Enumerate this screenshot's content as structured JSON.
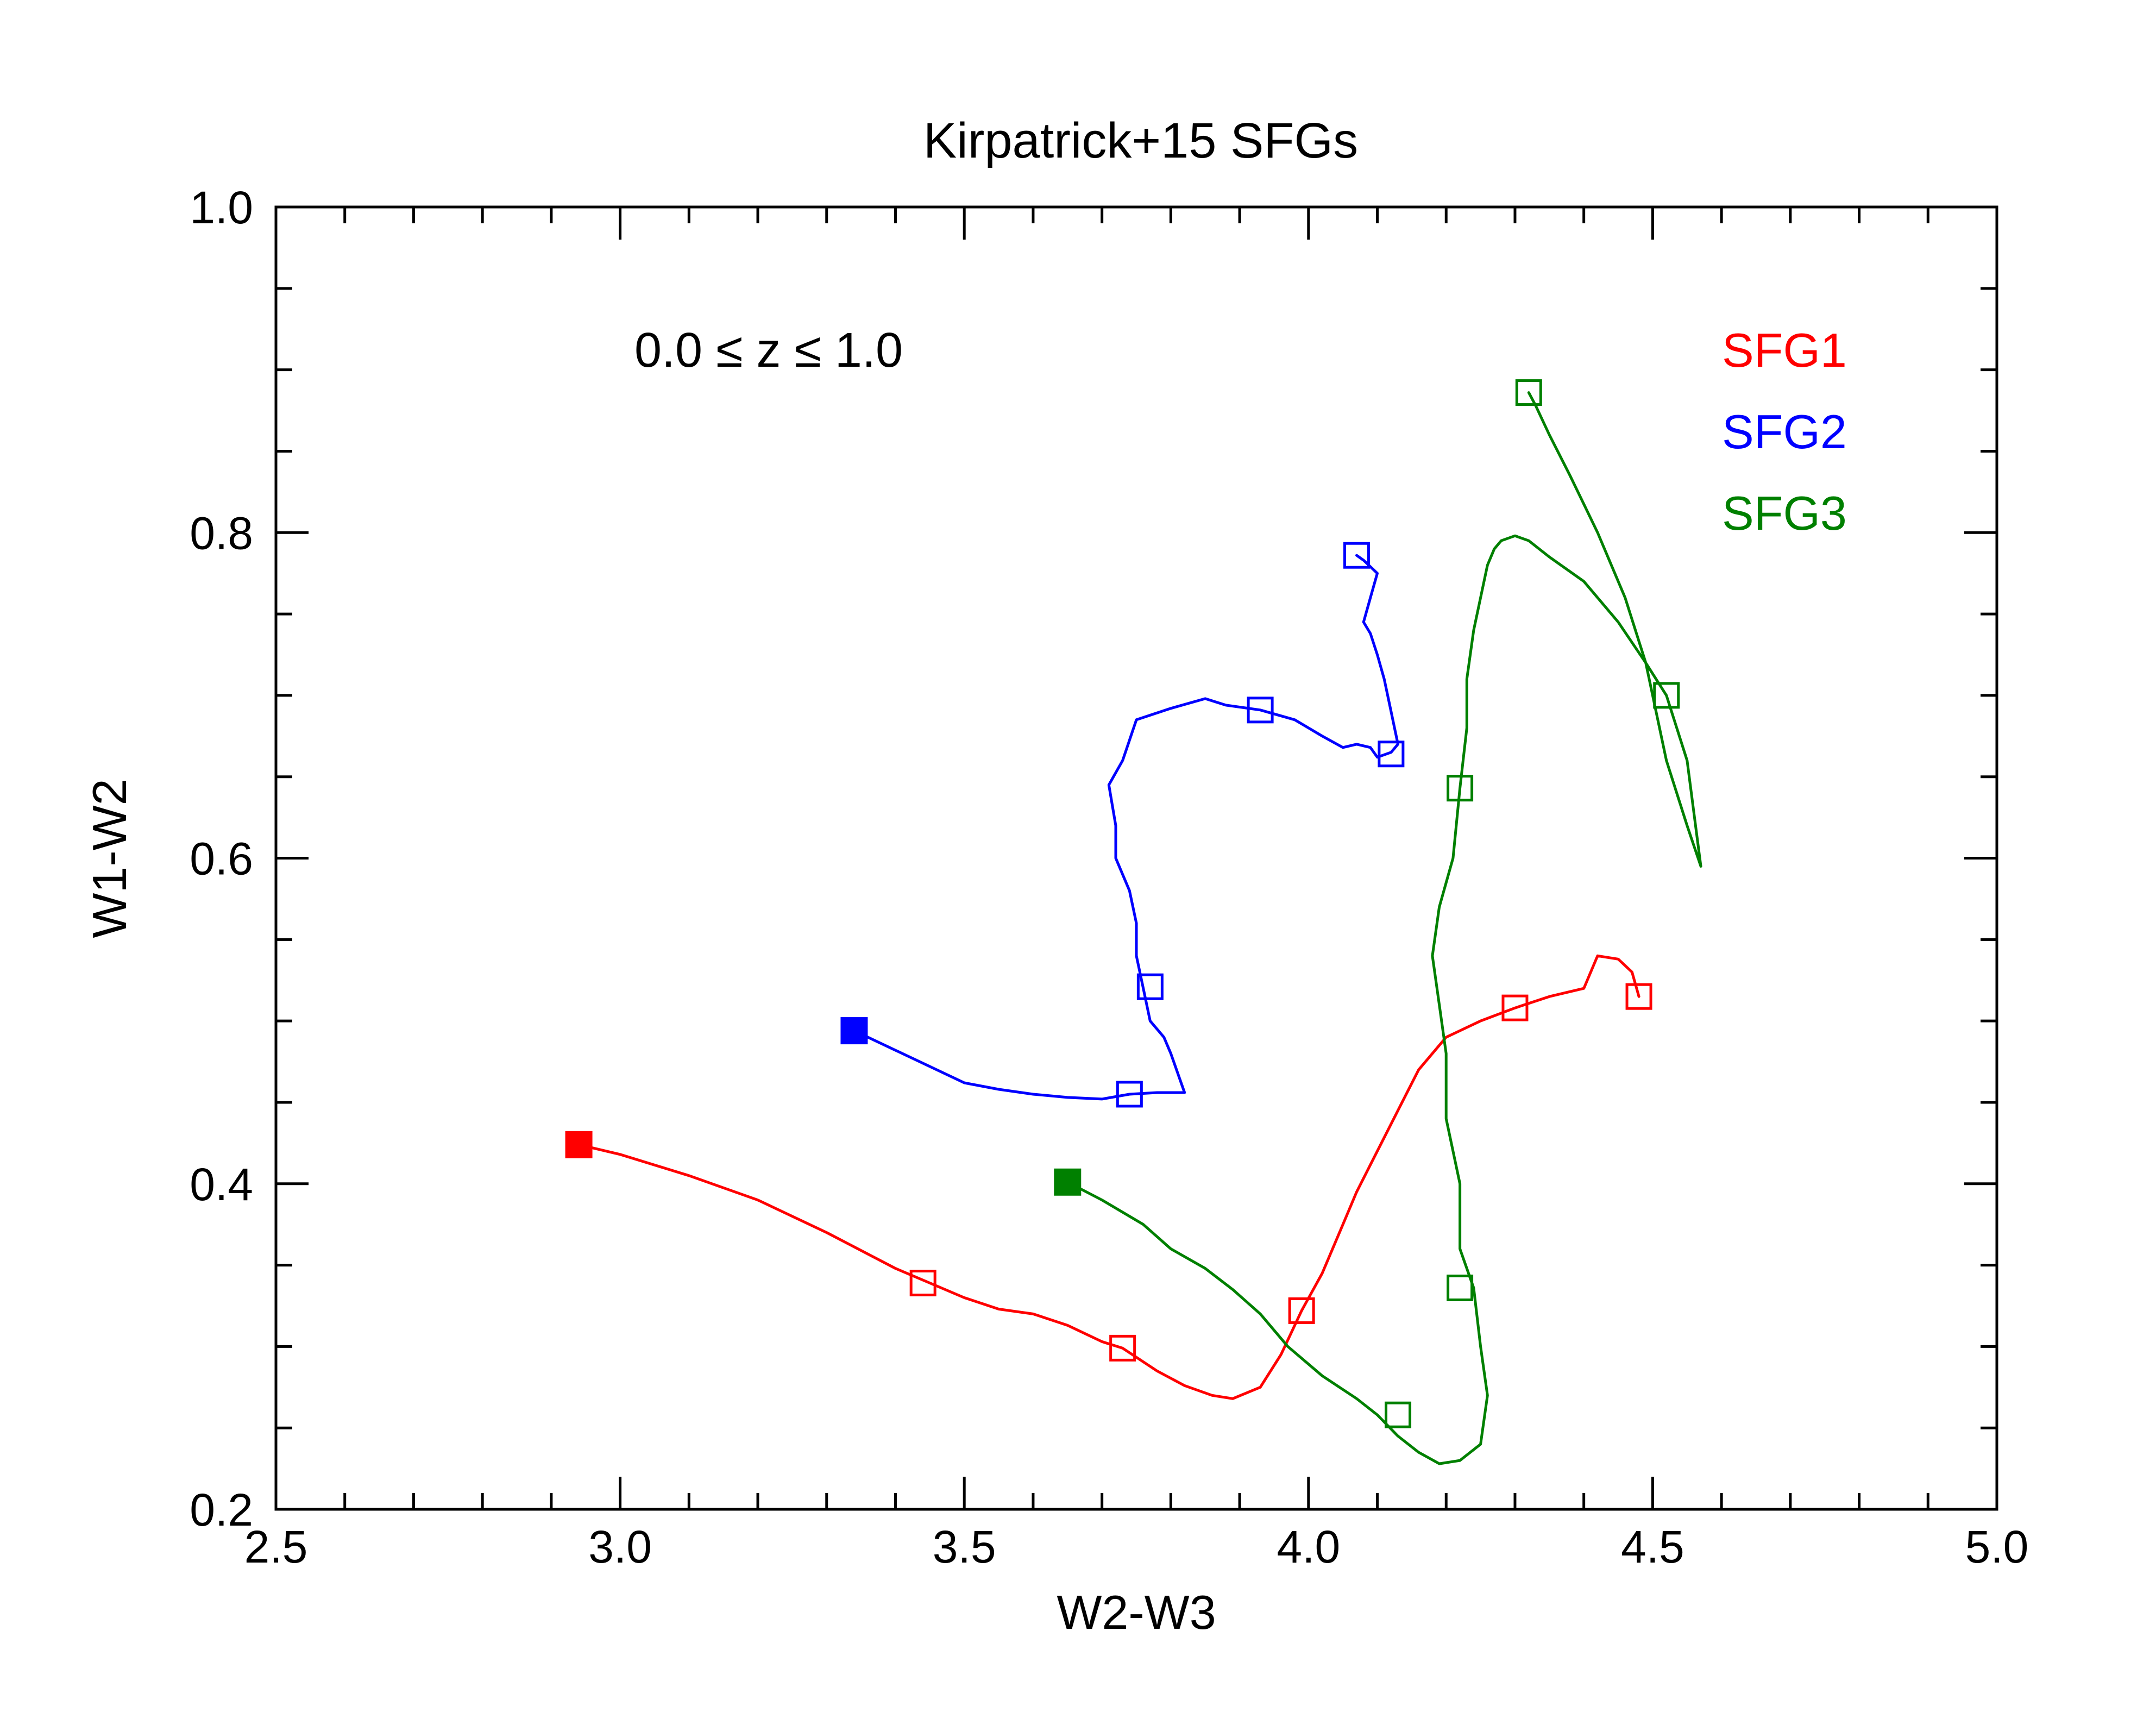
{
  "chart_data": {
    "type": "line",
    "title": "Kirpatrick+15 SFGs",
    "xlabel": "W2-W3",
    "ylabel": "W1-W2",
    "xlim": [
      2.5,
      5.0
    ],
    "ylim": [
      0.2,
      1.0
    ],
    "x_major_ticks": [
      2.5,
      3.0,
      3.5,
      4.0,
      4.5,
      5.0
    ],
    "x_major_tick_labels": [
      "2.5",
      "3.0",
      "3.5",
      "4.0",
      "4.5",
      "5.0"
    ],
    "y_major_ticks": [
      0.2,
      0.4,
      0.6,
      0.8,
      1.0
    ],
    "y_major_tick_labels": [
      "0.2",
      "0.4",
      "0.6",
      "0.8",
      "1.0"
    ],
    "x_minor_step": 0.1,
    "y_minor_step": 0.05,
    "grid": false,
    "legend_placement": "top-right",
    "annotation": "0.0 ≤ z ≤ 1.0",
    "series": [
      {
        "name": "SFG1",
        "color": "#ff0000",
        "x": [
          2.94,
          3.0,
          3.1,
          3.2,
          3.3,
          3.4,
          3.45,
          3.5,
          3.55,
          3.6,
          3.65,
          3.7,
          3.73,
          3.78,
          3.82,
          3.86,
          3.89,
          3.93,
          3.96,
          3.99,
          4.02,
          4.05,
          4.07,
          4.1,
          4.13,
          4.16,
          4.2,
          4.25,
          4.3,
          4.35,
          4.38,
          4.4,
          4.42,
          4.45,
          4.47,
          4.48
        ],
        "y": [
          0.424,
          0.418,
          0.405,
          0.39,
          0.37,
          0.348,
          0.339,
          0.33,
          0.323,
          0.32,
          0.313,
          0.303,
          0.299,
          0.285,
          0.276,
          0.27,
          0.268,
          0.275,
          0.295,
          0.322,
          0.345,
          0.375,
          0.395,
          0.42,
          0.445,
          0.47,
          0.49,
          0.5,
          0.508,
          0.515,
          0.518,
          0.52,
          0.54,
          0.538,
          0.53,
          0.515
        ],
        "markers_open": [
          [
            3.44,
            0.339
          ],
          [
            3.73,
            0.299
          ],
          [
            3.99,
            0.322
          ],
          [
            4.3,
            0.508
          ],
          [
            4.48,
            0.515
          ]
        ],
        "marker_filled": [
          2.94,
          0.424
        ]
      },
      {
        "name": "SFG2",
        "color": "#0000ff",
        "x": [
          3.34,
          3.4,
          3.45,
          3.5,
          3.55,
          3.6,
          3.65,
          3.7,
          3.74,
          3.78,
          3.82,
          3.81,
          3.8,
          3.79,
          3.77,
          3.76,
          3.75,
          3.75,
          3.74,
          3.72,
          3.72,
          3.71,
          3.73,
          3.75,
          3.8,
          3.85,
          3.88,
          3.93,
          3.98,
          4.02,
          4.05,
          4.07,
          4.09,
          4.1,
          4.12,
          4.13,
          4.12,
          4.11,
          4.1,
          4.09,
          4.08,
          4.09,
          4.1,
          4.08,
          4.07
        ],
        "y": [
          0.494,
          0.482,
          0.472,
          0.462,
          0.458,
          0.455,
          0.453,
          0.452,
          0.455,
          0.456,
          0.456,
          0.468,
          0.48,
          0.49,
          0.5,
          0.52,
          0.54,
          0.56,
          0.58,
          0.6,
          0.62,
          0.645,
          0.66,
          0.685,
          0.692,
          0.698,
          0.694,
          0.691,
          0.685,
          0.675,
          0.668,
          0.67,
          0.668,
          0.662,
          0.665,
          0.67,
          0.69,
          0.71,
          0.725,
          0.738,
          0.745,
          0.76,
          0.775,
          0.783,
          0.786
        ],
        "markers_open": [
          [
            3.74,
            0.455
          ],
          [
            3.77,
            0.521
          ],
          [
            3.93,
            0.691
          ],
          [
            4.12,
            0.664
          ],
          [
            4.07,
            0.786
          ]
        ],
        "marker_filled": [
          3.34,
          0.494
        ]
      },
      {
        "name": "SFG3",
        "color": "#008000",
        "x": [
          3.65,
          3.7,
          3.76,
          3.8,
          3.85,
          3.89,
          3.93,
          3.97,
          4.02,
          4.07,
          4.1,
          4.13,
          4.16,
          4.19,
          4.22,
          4.25,
          4.26,
          4.25,
          4.24,
          4.22,
          4.22,
          4.2,
          4.2,
          4.19,
          4.18,
          4.19,
          4.21,
          4.22,
          4.23,
          4.23,
          4.24,
          4.25,
          4.26,
          4.27,
          4.28,
          4.3,
          4.32,
          4.35,
          4.4,
          4.45,
          4.49,
          4.52,
          4.55,
          4.57,
          4.55,
          4.52,
          4.49,
          4.46,
          4.42,
          4.38,
          4.35,
          4.33,
          4.32
        ],
        "y": [
          0.401,
          0.39,
          0.375,
          0.36,
          0.348,
          0.335,
          0.32,
          0.3,
          0.282,
          0.268,
          0.258,
          0.245,
          0.235,
          0.228,
          0.23,
          0.24,
          0.27,
          0.3,
          0.336,
          0.36,
          0.4,
          0.44,
          0.48,
          0.51,
          0.54,
          0.57,
          0.6,
          0.643,
          0.68,
          0.71,
          0.74,
          0.76,
          0.78,
          0.79,
          0.795,
          0.798,
          0.795,
          0.785,
          0.77,
          0.745,
          0.72,
          0.7,
          0.66,
          0.595,
          0.62,
          0.66,
          0.72,
          0.76,
          0.8,
          0.835,
          0.86,
          0.878,
          0.886
        ],
        "markers_open": [
          [
            4.22,
            0.336
          ],
          [
            4.13,
            0.258
          ],
          [
            4.22,
            0.643
          ],
          [
            4.52,
            0.7
          ],
          [
            4.32,
            0.886
          ]
        ],
        "marker_filled": [
          3.65,
          0.401
        ]
      }
    ]
  }
}
